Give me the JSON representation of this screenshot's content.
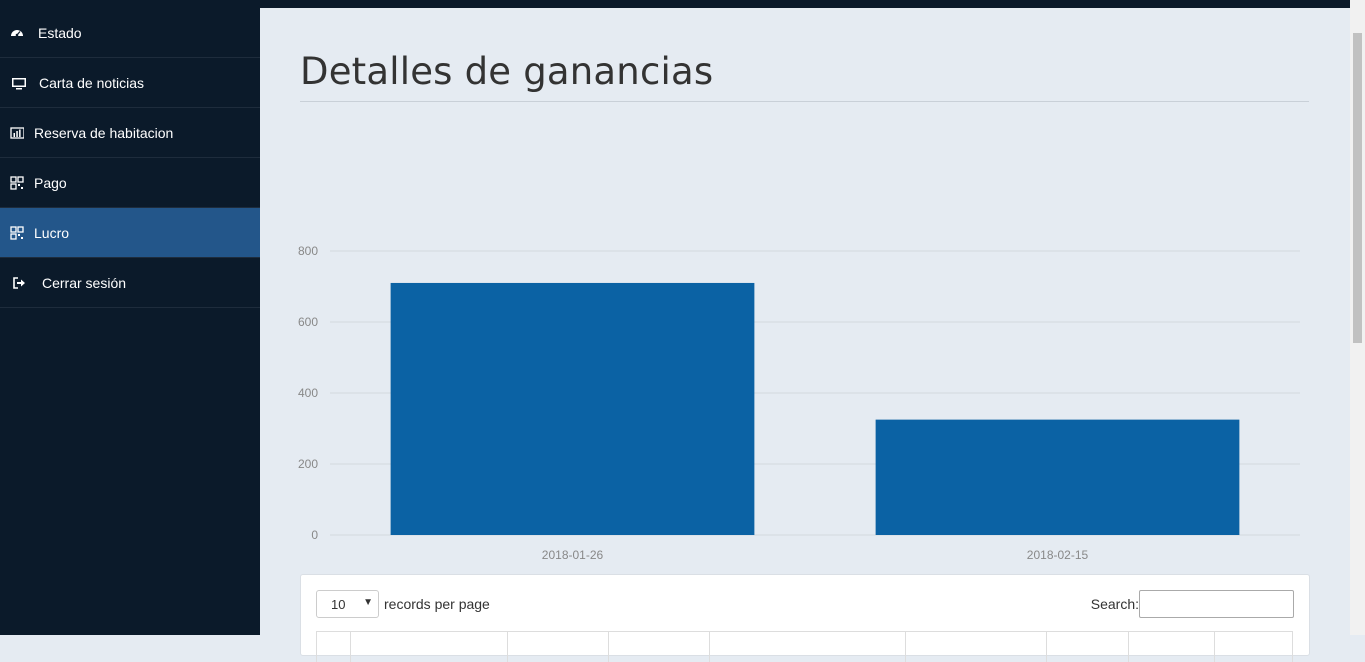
{
  "sidebar": {
    "items": [
      {
        "label": "Estado",
        "icon": "dashboard-icon"
      },
      {
        "label": "Carta de noticias",
        "icon": "monitor-icon"
      },
      {
        "label": "Reserva de habitacion",
        "icon": "bar-chart-icon"
      },
      {
        "label": "Pago",
        "icon": "qrcode-icon"
      },
      {
        "label": "Lucro",
        "icon": "qrcode-icon",
        "active": true
      },
      {
        "label": "Cerrar sesión",
        "icon": "sign-out-icon"
      }
    ]
  },
  "page": {
    "title": "Detalles de ganancias"
  },
  "chart_data": {
    "type": "bar",
    "categories": [
      "2018-01-26",
      "2018-02-15"
    ],
    "values": [
      710,
      325
    ],
    "ylim": [
      0,
      800
    ],
    "yticks": [
      0,
      200,
      400,
      600,
      800
    ],
    "color": "#0b62a4",
    "grid": true
  },
  "table_controls": {
    "page_length": "10",
    "records_label": "records per page",
    "search_label": "Search:",
    "search_value": ""
  },
  "colors": {
    "sidebar_bg": "#0b1a2a",
    "sidebar_active": "#23568a",
    "main_bg": "#e5ebf2",
    "bar": "#0b62a4"
  }
}
